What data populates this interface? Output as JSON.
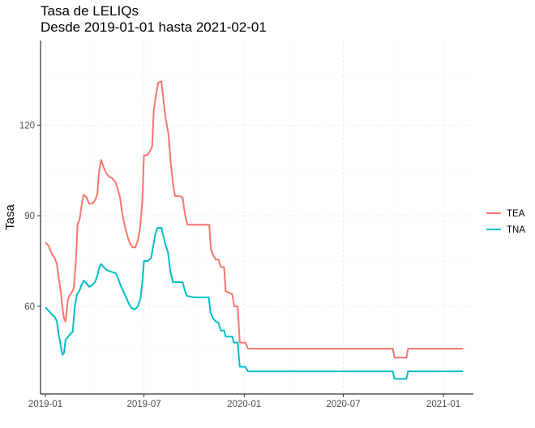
{
  "chart_data": {
    "type": "line",
    "title": "Tasa de LELIQs",
    "subtitle": "Desde 2019-01-01 hasta 2021-02-01",
    "xlabel": "",
    "ylabel": "Tasa",
    "x_ticks": [
      "2019-01",
      "2019-07",
      "2020-01",
      "2020-07",
      "2021-01"
    ],
    "y_ticks": [
      60,
      90,
      120
    ],
    "ylim": [
      31,
      148
    ],
    "xlim": [
      "2018-12-23",
      "2021-02-25"
    ],
    "grid": true,
    "legend_position": "right",
    "colors": {
      "TEA": "#F8766D",
      "TNA": "#00BFC4"
    },
    "series": [
      {
        "name": "TEA",
        "color": "#F8766D",
        "points": [
          [
            "2019-01-02",
            81
          ],
          [
            "2019-01-07",
            80
          ],
          [
            "2019-01-10",
            78.5
          ],
          [
            "2019-01-14",
            77
          ],
          [
            "2019-01-18",
            76
          ],
          [
            "2019-01-22",
            74
          ],
          [
            "2019-01-25",
            70
          ],
          [
            "2019-01-29",
            65
          ],
          [
            "2019-02-01",
            60
          ],
          [
            "2019-02-04",
            56
          ],
          [
            "2019-02-07",
            55
          ],
          [
            "2019-02-11",
            62
          ],
          [
            "2019-02-14",
            63.5
          ],
          [
            "2019-02-18",
            64.5
          ],
          [
            "2019-02-22",
            66
          ],
          [
            "2019-02-26",
            75
          ],
          [
            "2019-03-01",
            87
          ],
          [
            "2019-03-05",
            89
          ],
          [
            "2019-03-08",
            93
          ],
          [
            "2019-03-12",
            97
          ],
          [
            "2019-03-18",
            96
          ],
          [
            "2019-03-22",
            94
          ],
          [
            "2019-03-28",
            94
          ],
          [
            "2019-04-02",
            95
          ],
          [
            "2019-04-06",
            97
          ],
          [
            "2019-04-10",
            105
          ],
          [
            "2019-04-13",
            108.5
          ],
          [
            "2019-04-18",
            106
          ],
          [
            "2019-04-23",
            104
          ],
          [
            "2019-04-28",
            103
          ],
          [
            "2019-05-03",
            102.5
          ],
          [
            "2019-05-10",
            101
          ],
          [
            "2019-05-15",
            98
          ],
          [
            "2019-05-18",
            96
          ],
          [
            "2019-05-21",
            92
          ],
          [
            "2019-05-25",
            88
          ],
          [
            "2019-05-29",
            85
          ],
          [
            "2019-06-01",
            83
          ],
          [
            "2019-06-05",
            81
          ],
          [
            "2019-06-10",
            79.5
          ],
          [
            "2019-06-15",
            79.5
          ],
          [
            "2019-06-20",
            82
          ],
          [
            "2019-06-24",
            86
          ],
          [
            "2019-06-28",
            95
          ],
          [
            "2019-07-01",
            110
          ],
          [
            "2019-07-06",
            110
          ],
          [
            "2019-07-11",
            111
          ],
          [
            "2019-07-16",
            113
          ],
          [
            "2019-07-19",
            125
          ],
          [
            "2019-07-24",
            131
          ],
          [
            "2019-07-27",
            134
          ],
          [
            "2019-08-02",
            134.5
          ],
          [
            "2019-08-06",
            128
          ],
          [
            "2019-08-10",
            122
          ],
          [
            "2019-08-15",
            117
          ],
          [
            "2019-08-19",
            108
          ],
          [
            "2019-08-23",
            101
          ],
          [
            "2019-08-27",
            96.5
          ],
          [
            "2019-09-04",
            96.5
          ],
          [
            "2019-09-10",
            96
          ],
          [
            "2019-09-13",
            92
          ],
          [
            "2019-09-16",
            89
          ],
          [
            "2019-09-19",
            87
          ],
          [
            "2019-10-01",
            87
          ],
          [
            "2019-10-15",
            87
          ],
          [
            "2019-10-29",
            87
          ],
          [
            "2019-11-01",
            79
          ],
          [
            "2019-11-05",
            77
          ],
          [
            "2019-11-10",
            75.5
          ],
          [
            "2019-11-15",
            75.5
          ],
          [
            "2019-11-19",
            73
          ],
          [
            "2019-11-25",
            73
          ],
          [
            "2019-11-28",
            65
          ],
          [
            "2019-12-04",
            64.5
          ],
          [
            "2019-12-10",
            64
          ],
          [
            "2019-12-14",
            60
          ],
          [
            "2019-12-20",
            60
          ],
          [
            "2019-12-24",
            48
          ],
          [
            "2020-01-03",
            48
          ],
          [
            "2020-01-08",
            46
          ],
          [
            "2020-02-15",
            46
          ],
          [
            "2020-04-01",
            46
          ],
          [
            "2020-06-01",
            46
          ],
          [
            "2020-08-01",
            46
          ],
          [
            "2020-09-30",
            46
          ],
          [
            "2020-10-03",
            43
          ],
          [
            "2020-10-25",
            43
          ],
          [
            "2020-10-28",
            46
          ],
          [
            "2020-11-15",
            46
          ],
          [
            "2021-01-01",
            46
          ],
          [
            "2021-02-05",
            46
          ]
        ]
      },
      {
        "name": "TNA",
        "color": "#00BFC4",
        "points": [
          [
            "2019-01-02",
            59.5
          ],
          [
            "2019-01-07",
            58.5
          ],
          [
            "2019-01-12",
            57.5
          ],
          [
            "2019-01-18",
            56.5
          ],
          [
            "2019-01-22",
            55
          ],
          [
            "2019-01-25",
            51
          ],
          [
            "2019-01-29",
            47
          ],
          [
            "2019-02-01",
            44
          ],
          [
            "2019-02-04",
            44.5
          ],
          [
            "2019-02-07",
            49
          ],
          [
            "2019-02-12",
            50
          ],
          [
            "2019-02-16",
            51
          ],
          [
            "2019-02-20",
            51.5
          ],
          [
            "2019-02-24",
            60
          ],
          [
            "2019-02-28",
            64
          ],
          [
            "2019-03-04",
            65
          ],
          [
            "2019-03-08",
            67
          ],
          [
            "2019-03-12",
            68.5
          ],
          [
            "2019-03-18",
            67.5
          ],
          [
            "2019-03-22",
            66.5
          ],
          [
            "2019-03-28",
            67
          ],
          [
            "2019-04-02",
            68
          ],
          [
            "2019-04-06",
            70
          ],
          [
            "2019-04-10",
            73
          ],
          [
            "2019-04-13",
            74
          ],
          [
            "2019-04-18",
            73
          ],
          [
            "2019-04-24",
            72
          ],
          [
            "2019-05-01",
            71.5
          ],
          [
            "2019-05-10",
            71
          ],
          [
            "2019-05-15",
            69
          ],
          [
            "2019-05-19",
            67
          ],
          [
            "2019-05-24",
            65
          ],
          [
            "2019-05-29",
            63
          ],
          [
            "2019-06-03",
            61
          ],
          [
            "2019-06-08",
            59.5
          ],
          [
            "2019-06-14",
            59
          ],
          [
            "2019-06-20",
            60
          ],
          [
            "2019-06-25",
            63
          ],
          [
            "2019-06-28",
            68
          ],
          [
            "2019-07-01",
            75
          ],
          [
            "2019-07-08",
            75
          ],
          [
            "2019-07-14",
            76
          ],
          [
            "2019-07-18",
            80
          ],
          [
            "2019-07-22",
            84
          ],
          [
            "2019-07-26",
            86
          ],
          [
            "2019-08-02",
            86
          ],
          [
            "2019-08-06",
            83
          ],
          [
            "2019-08-10",
            80
          ],
          [
            "2019-08-14",
            78
          ],
          [
            "2019-08-18",
            72
          ],
          [
            "2019-08-23",
            68
          ],
          [
            "2019-09-02",
            68
          ],
          [
            "2019-09-10",
            68
          ],
          [
            "2019-09-13",
            66
          ],
          [
            "2019-09-17",
            63.5
          ],
          [
            "2019-10-01",
            63
          ],
          [
            "2019-10-15",
            63
          ],
          [
            "2019-10-28",
            63
          ],
          [
            "2019-10-31",
            58
          ],
          [
            "2019-11-05",
            56
          ],
          [
            "2019-11-10",
            55
          ],
          [
            "2019-11-15",
            54.5
          ],
          [
            "2019-11-19",
            52
          ],
          [
            "2019-11-25",
            52
          ],
          [
            "2019-11-28",
            50
          ],
          [
            "2019-12-10",
            50
          ],
          [
            "2019-12-13",
            48
          ],
          [
            "2019-12-20",
            48
          ],
          [
            "2019-12-24",
            40
          ],
          [
            "2020-01-03",
            40
          ],
          [
            "2020-01-08",
            38.5
          ],
          [
            "2020-02-15",
            38.5
          ],
          [
            "2020-04-01",
            38.5
          ],
          [
            "2020-06-01",
            38.5
          ],
          [
            "2020-08-01",
            38.5
          ],
          [
            "2020-09-30",
            38.5
          ],
          [
            "2020-10-03",
            36
          ],
          [
            "2020-10-25",
            36
          ],
          [
            "2020-10-28",
            38.5
          ],
          [
            "2020-11-15",
            38.5
          ],
          [
            "2021-01-01",
            38.5
          ],
          [
            "2021-02-05",
            38.5
          ]
        ]
      }
    ]
  }
}
